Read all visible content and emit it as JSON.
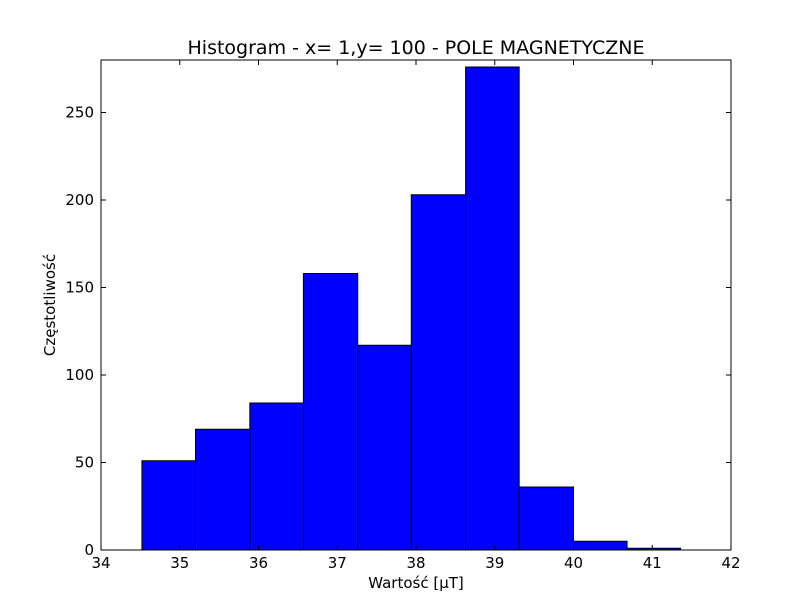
{
  "chart_data": {
    "type": "bar",
    "title": "Histogram - x= 1,y= 100 - POLE MAGNETYCZNE",
    "xlabel": "Wartość [μT]",
    "ylabel": "Częstotliwość",
    "xlim": [
      34,
      42
    ],
    "ylim": [
      0,
      280
    ],
    "xticks": [
      34,
      35,
      36,
      37,
      38,
      39,
      40,
      41,
      42
    ],
    "yticks": [
      0,
      50,
      100,
      150,
      200,
      250
    ],
    "bin_edges": [
      34.52,
      35.2,
      35.89,
      36.57,
      37.26,
      37.94,
      38.63,
      39.31,
      40.0,
      40.68,
      41.36
    ],
    "values": [
      51,
      69,
      84,
      158,
      117,
      203,
      276,
      36,
      5,
      1
    ],
    "bar_color": "#0000ff",
    "edge_color": "#000000",
    "grid": false
  }
}
